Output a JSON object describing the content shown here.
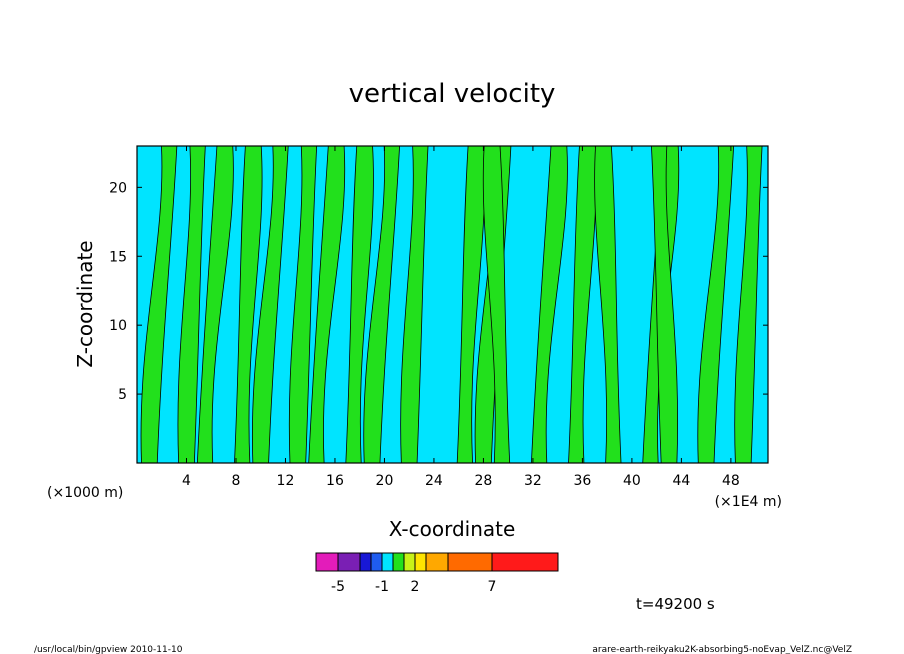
{
  "chart_data": {
    "type": "heatmap",
    "title": "vertical velocity",
    "xlabel": "X-coordinate",
    "ylabel": "Z-coordinate",
    "x_unit_left": "(×1000 m)",
    "x_unit_right": "(×1E4 m)",
    "xlim": [
      0,
      51
    ],
    "ylim": [
      0,
      23
    ],
    "x_ticks": [
      4,
      8,
      12,
      16,
      20,
      24,
      28,
      32,
      36,
      40,
      44,
      48
    ],
    "y_ticks": [
      5,
      10,
      15,
      20
    ],
    "x_tick_labels": [
      "4",
      "8",
      "12",
      "16",
      "20",
      "24",
      "28",
      "32",
      "36",
      "40",
      "44",
      "48"
    ],
    "y_tick_labels": [
      "5",
      "10",
      "15",
      "20"
    ],
    "colorbar": {
      "levels": [
        -7,
        -5,
        -3,
        -2,
        -1,
        0,
        1,
        2,
        3,
        5,
        7,
        10
      ],
      "colors": [
        "#e31cba",
        "#7a1fb4",
        "#1818d6",
        "#1f5cf0",
        "#00e4ff",
        "#22e01c",
        "#c8f218",
        "#ffe400",
        "#ffa800",
        "#ff6a00",
        "#ff1a1a",
        "#ff7f7f",
        "#ffb4b4"
      ],
      "labels": [
        "-5",
        "-1",
        "2",
        "7"
      ],
      "label_values": [
        -5,
        -1,
        2,
        7
      ]
    },
    "field_colors": {
      "negative": "#00e4ff",
      "positive": "#22e01c",
      "contour": "#000000"
    },
    "columns": {
      "x": [
        1.0,
        2.5,
        4.0,
        5.5,
        7.0,
        8.5,
        10.0,
        11.5,
        13.0,
        14.5,
        16.0,
        17.5,
        19.0,
        20.5,
        22.0,
        23.5,
        25.0,
        26.5,
        28.0,
        29.5,
        31.0,
        32.5,
        34.0,
        35.5,
        37.0,
        38.5,
        40.0,
        41.5,
        43.0,
        44.5,
        46.0,
        47.5,
        49.0,
        50.5
      ],
      "sign": [
        "+",
        "-",
        "+",
        "+",
        "-",
        "+",
        "+",
        "-",
        "+",
        "+",
        "-",
        "+",
        "+",
        "-",
        "+",
        "-",
        "-",
        "+",
        "+",
        "+",
        "-",
        "+",
        "-",
        "+",
        "-",
        "+",
        "-",
        "+",
        "+",
        "-",
        "+",
        "-",
        "+",
        "-"
      ]
    }
  },
  "time_label": "t=49200 s",
  "footer": {
    "left": "/usr/local/bin/gpview  2010-11-10",
    "right": "arare-earth-reikyaku2K-absorbing5-noEvap_VelZ.nc@VelZ"
  }
}
